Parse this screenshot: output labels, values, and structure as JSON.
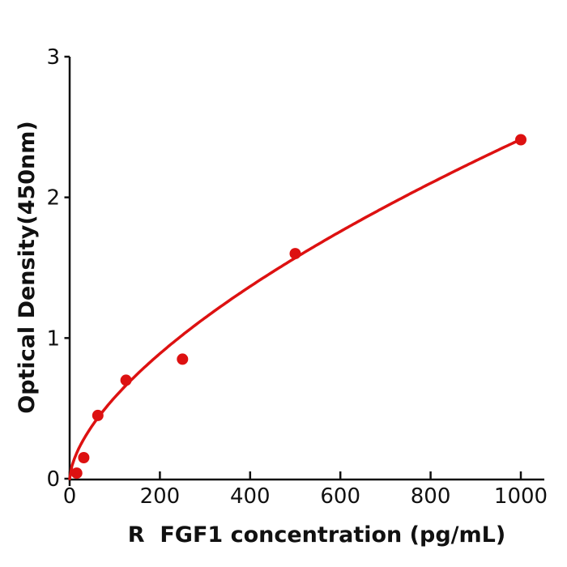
{
  "page": {
    "background_color": "#ffffff"
  },
  "chart_data": {
    "type": "scatter",
    "subtype": "ELISA standard curve (points + fitted curve)",
    "title": "",
    "xlabel": "R  FGF1 concentration (pg/mL)",
    "ylabel": "Optical Density(450nm)",
    "series": [
      {
        "name": "standard-points",
        "x": [
          15.6,
          31.25,
          62.5,
          125,
          250,
          500,
          1000
        ],
        "y": [
          0.04,
          0.15,
          0.45,
          0.7,
          0.85,
          1.6,
          2.41
        ]
      }
    ],
    "fit_curve": {
      "name": "fitted-curve",
      "model": "power",
      "a": 0.0333,
      "b": 0.62,
      "x_start": 0,
      "x_end": 1000
    },
    "xlim": [
      0,
      1052
    ],
    "ylim": [
      0,
      3
    ],
    "x_ticks": [
      0,
      200,
      400,
      600,
      800,
      1000
    ],
    "x_tick_labels": [
      "0",
      "200",
      "400",
      "600",
      "800",
      "1000"
    ],
    "y_ticks": [
      0,
      1,
      2,
      3
    ],
    "y_tick_labels": [
      "0",
      "1",
      "2",
      "3"
    ],
    "grid": false,
    "legend": "none",
    "marker_color": "#dd1111",
    "line_color": "#dd1111",
    "axis_color": "#111111"
  }
}
